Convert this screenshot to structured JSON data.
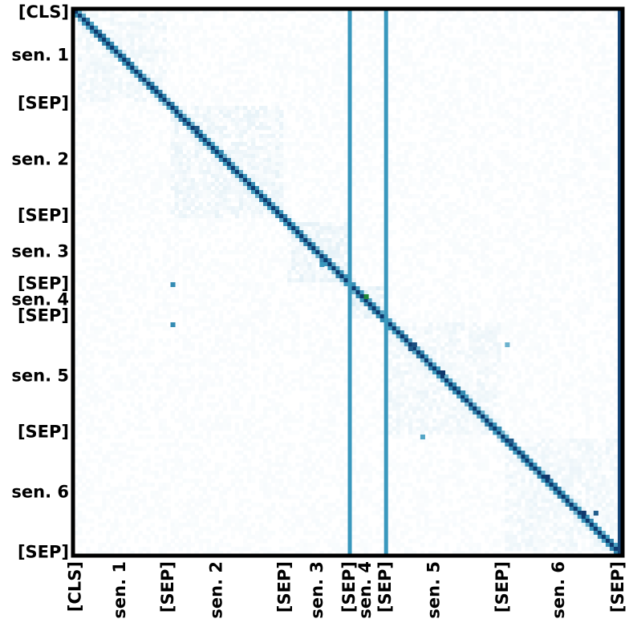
{
  "chart_data": {
    "type": "heatmap",
    "title": "",
    "xlabel": "",
    "ylabel": "",
    "colormap": "white-to-blue-green-to-navy",
    "colors": {
      "low": "#ffffff",
      "mid": "#3a98bd",
      "high": "#0b2d63",
      "peak": "#1f8a3b",
      "frame": "#000000"
    },
    "grid": false,
    "legend": "none",
    "token_count": 136,
    "x_tick_labels": [
      {
        "label": "[CLS]",
        "index": 0
      },
      {
        "label": "sen. 1",
        "index": 11
      },
      {
        "label": "[SEP]",
        "index": 23
      },
      {
        "label": "sen. 2",
        "index": 35
      },
      {
        "label": "[SEP]",
        "index": 52
      },
      {
        "label": "sen. 3",
        "index": 60
      },
      {
        "label": "[SEP]",
        "index": 68
      },
      {
        "label": "sen. 4",
        "index": 72
      },
      {
        "label": "[SEP]",
        "index": 77
      },
      {
        "label": "sen. 5",
        "index": 89
      },
      {
        "label": "[SEP]",
        "index": 106
      },
      {
        "label": "sen. 6",
        "index": 120
      },
      {
        "label": "[SEP]",
        "index": 135
      }
    ],
    "y_tick_labels": [
      {
        "label": "[CLS]",
        "index": 0
      },
      {
        "label": "sen. 1",
        "index": 11
      },
      {
        "label": "[SEP]",
        "index": 23
      },
      {
        "label": "sen. 2",
        "index": 37
      },
      {
        "label": "[SEP]",
        "index": 51
      },
      {
        "label": "sen. 3",
        "index": 60
      },
      {
        "label": "[SEP]",
        "index": 68
      },
      {
        "label": "sen. 4",
        "index": 72
      },
      {
        "label": "[SEP]",
        "index": 76
      },
      {
        "label": "sen. 5",
        "index": 91
      },
      {
        "label": "[SEP]",
        "index": 105
      },
      {
        "label": "sen. 6",
        "index": 120
      },
      {
        "label": "[SEP]",
        "index": 135
      }
    ],
    "segments": [
      {
        "name": "sen. 1",
        "start": 1,
        "end": 22,
        "intra_level": 0.1
      },
      {
        "name": "sen. 2",
        "start": 24,
        "end": 51,
        "intra_level": 0.12
      },
      {
        "name": "sen. 3",
        "start": 53,
        "end": 67,
        "intra_level": 0.14
      },
      {
        "name": "sen. 4",
        "start": 69,
        "end": 76,
        "intra_level": 0.18
      },
      {
        "name": "sen. 5",
        "start": 78,
        "end": 105,
        "intra_level": 0.1
      },
      {
        "name": "sen. 6",
        "start": 107,
        "end": 134,
        "intra_level": 0.1
      }
    ],
    "column_bands": [
      {
        "index": 68,
        "value": 0.55
      },
      {
        "index": 77,
        "value": 0.55
      },
      {
        "index": 135,
        "value": 0.9
      }
    ],
    "diagonal_value": 0.95,
    "hotspots": [
      {
        "row": 29,
        "col": 30,
        "value": 0.8
      },
      {
        "row": 35,
        "col": 36,
        "value": 0.6
      },
      {
        "row": 63,
        "col": 61,
        "value": 0.55
      },
      {
        "row": 71,
        "col": 72,
        "value": 1.0
      },
      {
        "row": 83,
        "col": 84,
        "value": 0.85
      },
      {
        "row": 84,
        "col": 83,
        "value": 0.8
      },
      {
        "row": 90,
        "col": 91,
        "value": 0.95
      },
      {
        "row": 83,
        "col": 107,
        "value": 0.45
      },
      {
        "row": 95,
        "col": 96,
        "value": 0.6
      },
      {
        "row": 104,
        "col": 105,
        "value": 0.6
      },
      {
        "row": 107,
        "col": 108,
        "value": 0.8
      },
      {
        "row": 116,
        "col": 117,
        "value": 0.95
      },
      {
        "row": 125,
        "col": 126,
        "value": 0.95
      },
      {
        "row": 125,
        "col": 129,
        "value": 0.8
      },
      {
        "row": 68,
        "col": 24,
        "value": 0.6
      },
      {
        "row": 78,
        "col": 24,
        "value": 0.6
      },
      {
        "row": 106,
        "col": 86,
        "value": 0.5
      }
    ]
  }
}
